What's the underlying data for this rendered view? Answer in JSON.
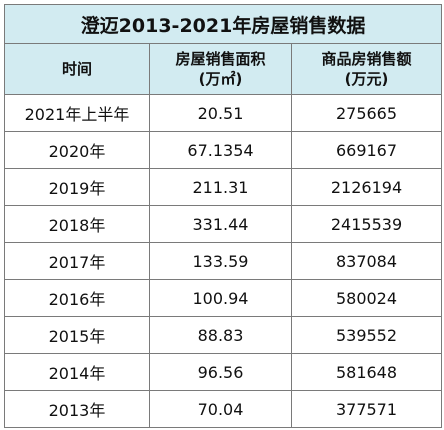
{
  "table": {
    "title": "澄迈2013-2021年房屋销售数据",
    "columns": {
      "time": "时间",
      "area_line1": "房屋销售面积",
      "area_line2": "(万㎡)",
      "amount_line1": "商品房销售额",
      "amount_line2": "(万元)"
    },
    "rows": [
      {
        "year": "2021年上半年",
        "area": "20.51",
        "amount": "275665"
      },
      {
        "year": "2020年",
        "area": "67.1354",
        "amount": "669167"
      },
      {
        "year": "2019年",
        "area": "211.31",
        "amount": "2126194"
      },
      {
        "year": "2018年",
        "area": "331.44",
        "amount": "2415539"
      },
      {
        "year": "2017年",
        "area": "133.59",
        "amount": "837084"
      },
      {
        "year": "2016年",
        "area": "100.94",
        "amount": "580024"
      },
      {
        "year": "2015年",
        "area": "88.83",
        "amount": "539552"
      },
      {
        "year": "2014年",
        "area": "96.56",
        "amount": "581648"
      },
      {
        "year": "2013年",
        "area": "70.04",
        "amount": "377571"
      }
    ]
  },
  "colors": {
    "header_bg": "#d2ebf1",
    "border": "#7a7a7a"
  }
}
